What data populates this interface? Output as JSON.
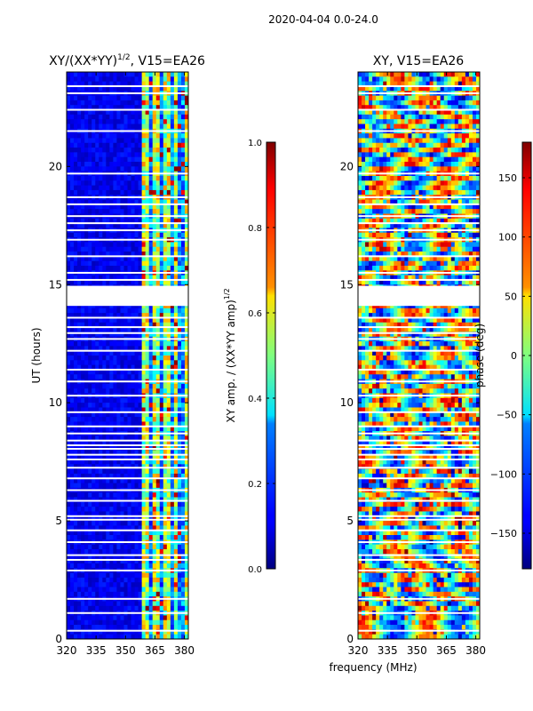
{
  "suptitle": "2020-04-04 0.0-24.0",
  "chart_data": [
    {
      "type": "heatmap",
      "title": "XY/(XX*YY)",
      "title_exp": "1/2",
      "title_suffix": ", V15=EA26",
      "xlabel": "frequency (MHz)",
      "ylabel": "UT (hours)",
      "xlim": [
        320,
        382
      ],
      "ylim": [
        0,
        24
      ],
      "xticks": [
        320,
        335,
        350,
        365,
        380
      ],
      "yticks": [
        0,
        5,
        10,
        15,
        20
      ],
      "clim": [
        0.0,
        1.0
      ],
      "colormap": "jet",
      "colorbar": {
        "label": "XY amp. / (XX*YY amp)",
        "label_exp": "1/2",
        "ticks": [
          0.0,
          0.2,
          0.4,
          0.6,
          0.8,
          1.0
        ],
        "tick_labels": [
          "0.0",
          "0.2",
          "0.4",
          "0.6",
          "0.8",
          "1.0"
        ]
      },
      "flagged_hours": [
        0.35,
        1.1,
        1.7,
        2.9,
        3.35,
        3.55,
        4.1,
        4.6,
        5.05,
        5.2,
        5.85,
        6.3,
        6.8,
        7.25,
        7.6,
        7.8,
        8.05,
        8.2,
        8.4,
        8.7,
        9.0,
        9.6,
        10.3,
        10.9,
        11.4,
        12.2,
        12.7,
        12.95,
        13.2,
        13.6,
        14.2,
        14.4,
        14.6,
        14.85,
        15.2,
        15.5,
        16.2,
        16.9,
        17.3,
        17.6,
        17.9,
        18.4,
        18.7,
        19.7,
        21.5,
        22.4,
        23.1,
        23.4
      ]
    },
    {
      "type": "heatmap",
      "title": "XY, V15=EA26",
      "xlabel": "frequency (MHz)",
      "xlim": [
        320,
        382
      ],
      "ylim": [
        0,
        24
      ],
      "xticks": [
        320,
        335,
        350,
        365,
        380
      ],
      "yticks": [
        0,
        5,
        10,
        15,
        20
      ],
      "clim": [
        -180,
        180
      ],
      "colormap": "jet",
      "colorbar": {
        "label": "phase (deg)",
        "ticks": [
          -150,
          -100,
          -50,
          0,
          50,
          100,
          150
        ],
        "tick_labels": [
          "−150",
          "−100",
          "−50",
          "0",
          "50",
          "100",
          "150"
        ]
      },
      "flagged_hours": [
        0.35,
        1.1,
        1.7,
        2.9,
        3.35,
        3.55,
        4.1,
        4.6,
        5.05,
        5.2,
        5.85,
        6.3,
        6.8,
        7.25,
        7.6,
        7.8,
        8.05,
        8.2,
        8.4,
        8.7,
        9.0,
        9.6,
        10.3,
        10.9,
        11.4,
        12.2,
        12.7,
        12.95,
        13.2,
        13.6,
        14.2,
        14.4,
        14.6,
        14.85,
        15.2,
        15.5,
        16.2,
        16.9,
        17.3,
        17.6,
        17.9,
        18.4,
        18.7,
        19.7,
        21.5,
        22.4,
        23.1,
        23.4
      ]
    }
  ]
}
